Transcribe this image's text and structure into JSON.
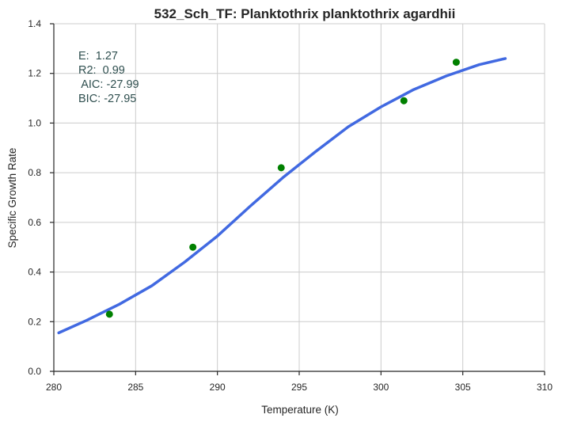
{
  "chart_data": {
    "type": "scatter",
    "title": "532_Sch_TF: Planktothrix planktothrix agardhii",
    "xlabel": "Temperature (K)",
    "ylabel": "Specific Growth Rate",
    "xlim": [
      280,
      310
    ],
    "ylim": [
      0.0,
      1.4
    ],
    "xticks": [
      280,
      285,
      290,
      295,
      300,
      305,
      310
    ],
    "yticks": [
      0.0,
      0.2,
      0.4,
      0.6,
      0.8,
      1.0,
      1.2,
      1.4
    ],
    "xtick_labels": [
      "280",
      "285",
      "290",
      "295",
      "300",
      "305",
      "310"
    ],
    "ytick_labels": [
      "0.0",
      "0.2",
      "0.4",
      "0.6",
      "0.8",
      "1.0",
      "1.2",
      "1.4"
    ],
    "grid": true,
    "series": [
      {
        "kind": "scatter",
        "color": "#008000",
        "x": [
          283.4,
          288.5,
          293.9,
          301.4,
          304.6
        ],
        "y": [
          0.23,
          0.5,
          0.82,
          1.09,
          1.245
        ]
      },
      {
        "kind": "line",
        "color": "#4169e1",
        "x": [
          280.3,
          282.0,
          284.0,
          286.0,
          288.0,
          290.0,
          292.0,
          294.0,
          296.0,
          298.0,
          300.0,
          302.0,
          304.0,
          306.0,
          307.6
        ],
        "y": [
          0.155,
          0.205,
          0.27,
          0.345,
          0.44,
          0.545,
          0.665,
          0.78,
          0.885,
          0.985,
          1.065,
          1.135,
          1.19,
          1.235,
          1.26
        ]
      }
    ],
    "annotation": {
      "lines": [
        "E:  1.27",
        "R2:  0.99",
        " AIC: -27.99",
        "BIC: -27.95"
      ]
    }
  }
}
